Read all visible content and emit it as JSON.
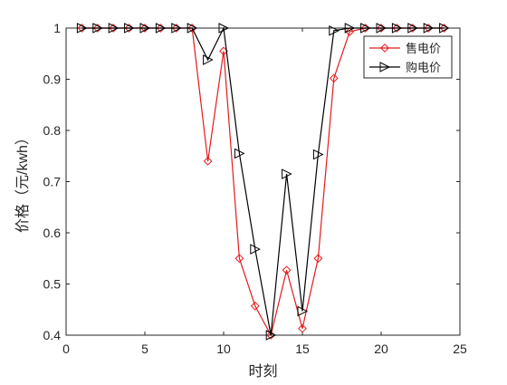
{
  "chart_data": {
    "type": "line",
    "title": "",
    "xlabel": "时刻",
    "ylabel": "价格（元/kwh）",
    "xlim": [
      0,
      25
    ],
    "ylim": [
      0.4,
      1
    ],
    "xticks": [
      0,
      5,
      10,
      15,
      20,
      25
    ],
    "yticks": [
      0.4,
      0.5,
      0.6,
      0.7,
      0.8,
      0.9,
      1
    ],
    "xtick_labels": [
      "0",
      "5",
      "10",
      "15",
      "20",
      "25"
    ],
    "ytick_labels": [
      "0.4",
      "0.5",
      "0.6",
      "0.7",
      "0.8",
      "0.9",
      "1"
    ],
    "grid": false,
    "legend_position": "top-right",
    "x": [
      1,
      2,
      3,
      4,
      5,
      6,
      7,
      8,
      9,
      10,
      11,
      12,
      13,
      14,
      15,
      16,
      17,
      18,
      19,
      20,
      21,
      22,
      23,
      24
    ],
    "series": [
      {
        "name": "售电价",
        "color": "#e41a1c",
        "marker": "diamond",
        "values": [
          1,
          1,
          1,
          1,
          1,
          1,
          1,
          1,
          0.74,
          0.955,
          0.55,
          0.457,
          0.4,
          0.527,
          0.413,
          0.55,
          0.902,
          0.993,
          1,
          1,
          1,
          1,
          1,
          1
        ]
      },
      {
        "name": "购电价",
        "color": "#000000",
        "marker": "triangle-right",
        "values": [
          1,
          1,
          1,
          1,
          1,
          1,
          1,
          1,
          0.938,
          1,
          0.755,
          0.568,
          0.4,
          0.715,
          0.447,
          0.753,
          0.995,
          1,
          1,
          1,
          1,
          1,
          1,
          1
        ]
      }
    ]
  }
}
